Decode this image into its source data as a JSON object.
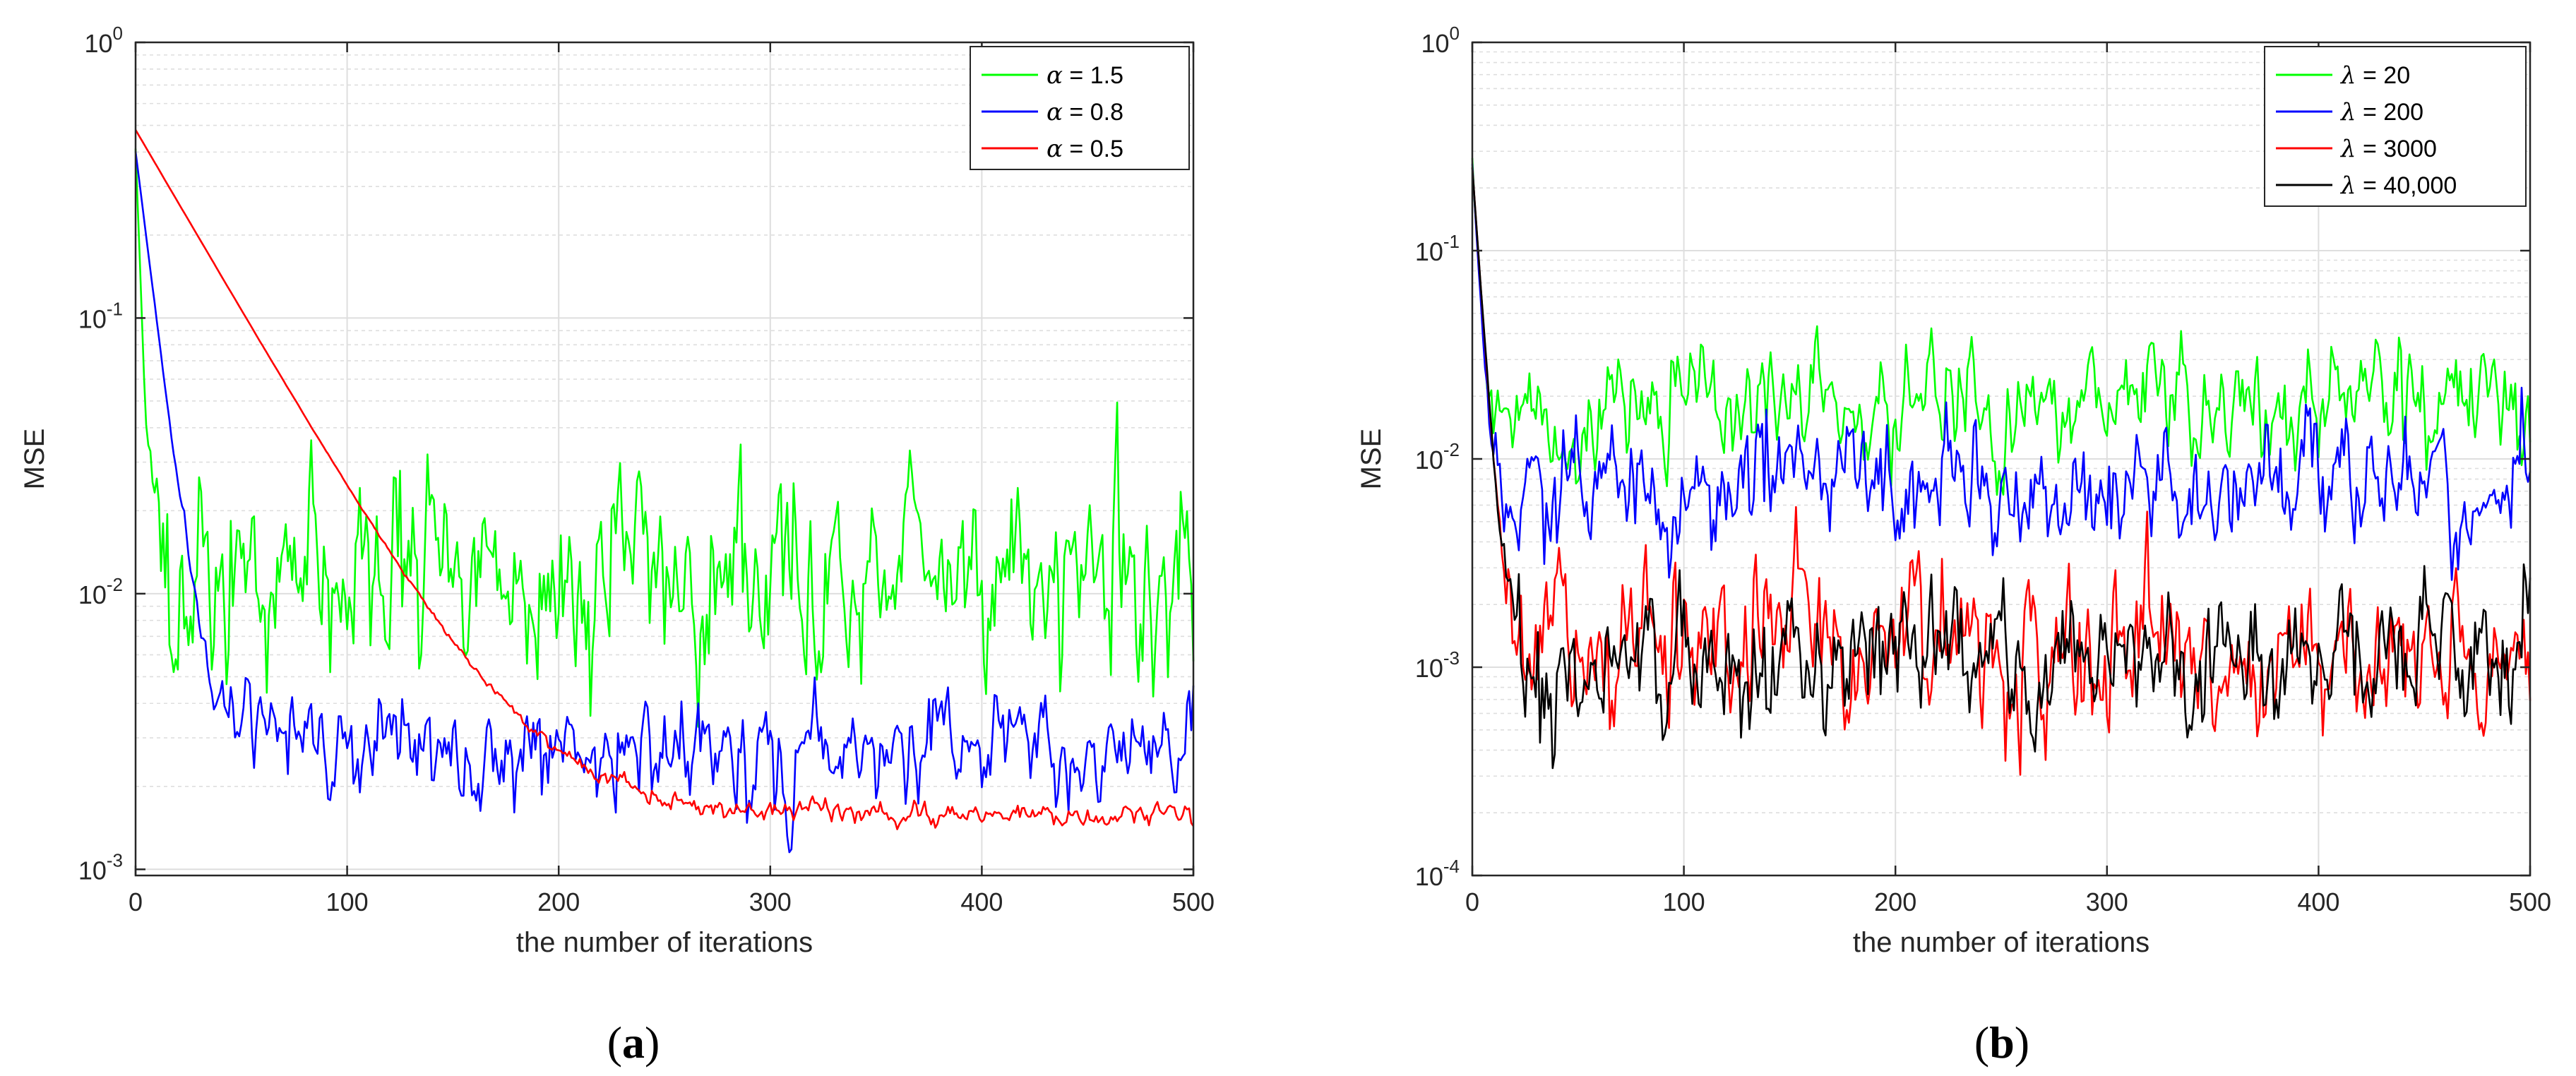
{
  "colors": {
    "green": "#00ff00",
    "blue": "#0000ff",
    "red": "#ff0000",
    "black": "#000000",
    "grid": "#dedede",
    "axis": "#262626"
  },
  "chart_data": [
    {
      "id": "a",
      "type": "line",
      "panel_label": "a",
      "title": "",
      "xlabel": "the number of iterations",
      "ylabel": "MSE",
      "xscale": "linear",
      "yscale": "log",
      "xlim": [
        0,
        500
      ],
      "ylim": [
        0.00095,
        1
      ],
      "xticks": [
        0,
        100,
        200,
        300,
        400,
        500
      ],
      "xtick_labels": [
        "0",
        "100",
        "200",
        "300",
        "400",
        "500"
      ],
      "yticks": [
        {
          "value": 0.001,
          "base": "10",
          "exp": "-3"
        },
        {
          "value": 0.01,
          "base": "10",
          "exp": "-2"
        },
        {
          "value": 0.1,
          "base": "10",
          "exp": "-1"
        },
        {
          "value": 1,
          "base": "10",
          "exp": "0"
        }
      ],
      "grid": true,
      "legend_position": "top-right",
      "series": [
        {
          "name": "α = 1.5",
          "symbol": "α",
          "value_text": " = 1.5",
          "color": "#00ff00",
          "model": {
            "start": 0.4,
            "decay": 2,
            "level": 0.012,
            "spread": 1.0,
            "seed": 11
          }
        },
        {
          "name": "α = 0.8",
          "symbol": "α",
          "value_text": " = 0.8",
          "color": "#0000ff",
          "model": {
            "start": 0.4,
            "decay": 7,
            "level": 0.0026,
            "spread": 0.55,
            "seed": 23
          }
        },
        {
          "name": "α = 0.5",
          "symbol": "α",
          "value_text": " = 0.5",
          "color": "#ff0000",
          "model": {
            "start": 0.48,
            "decay": 33,
            "level": 0.0016,
            "spread": 0.12,
            "seed": 37
          }
        }
      ]
    },
    {
      "id": "b",
      "type": "line",
      "panel_label": "b",
      "title": "",
      "xlabel": "the number of iterations",
      "ylabel": "MSE",
      "xscale": "linear",
      "yscale": "log",
      "xlim": [
        0,
        500
      ],
      "ylim": [
        0.0001,
        1
      ],
      "xticks": [
        0,
        100,
        200,
        300,
        400,
        500
      ],
      "xtick_labels": [
        "0",
        "100",
        "200",
        "300",
        "400",
        "500"
      ],
      "yticks": [
        {
          "value": 0.0001,
          "base": "10",
          "exp": "-4"
        },
        {
          "value": 0.001,
          "base": "10",
          "exp": "-3"
        },
        {
          "value": 0.01,
          "base": "10",
          "exp": "-2"
        },
        {
          "value": 0.1,
          "base": "10",
          "exp": "-1"
        },
        {
          "value": 1,
          "base": "10",
          "exp": "0"
        }
      ],
      "grid": true,
      "legend_position": "top-right",
      "series": [
        {
          "name": "λ = 20",
          "symbol": "λ",
          "value_text": " = 20",
          "color": "#00ff00",
          "model": {
            "start": 0.25,
            "decay": 2,
            "level": 0.018,
            "spread": 0.8,
            "seed": 41
          }
        },
        {
          "name": "λ = 200",
          "symbol": "λ",
          "value_text": " = 200",
          "color": "#0000ff",
          "model": {
            "start": 0.25,
            "decay": 2.5,
            "level": 0.0075,
            "spread": 0.9,
            "seed": 53
          }
        },
        {
          "name": "λ = 3000",
          "symbol": "λ",
          "value_text": " = 3000",
          "color": "#ff0000",
          "model": {
            "start": 0.25,
            "decay": 3,
            "level": 0.0011,
            "spread": 1.0,
            "seed": 67
          }
        },
        {
          "name": "λ = 40,000",
          "symbol": "λ",
          "value_text": " = 40,000",
          "color": "#000000",
          "model": {
            "start": 0.25,
            "decay": 3,
            "level": 0.0011,
            "spread": 1.0,
            "seed": 79
          }
        }
      ]
    }
  ]
}
